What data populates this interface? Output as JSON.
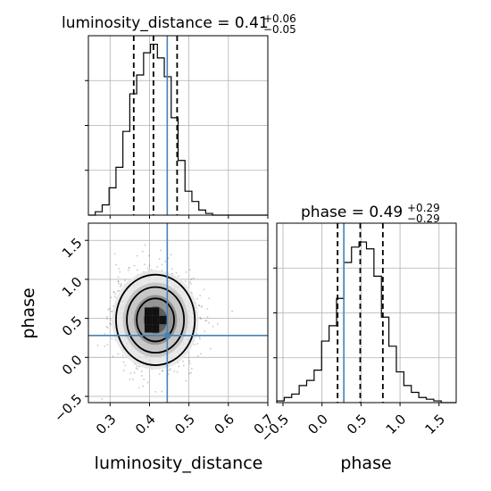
{
  "chart_data": [
    {
      "type": "histogram",
      "panel": "top-left",
      "title_prefix": "luminosity_distance = 0.41",
      "title_sup": "+0.06",
      "title_sub": "−0.05",
      "xlim": [
        0.245,
        0.7
      ],
      "ylim": [
        0,
        1.0
      ],
      "x_ticks": [
        0.3,
        0.4,
        0.5,
        0.6,
        0.7
      ],
      "bin_edges": [
        0.245,
        0.2625,
        0.28,
        0.2975,
        0.315,
        0.3325,
        0.35,
        0.3675,
        0.385,
        0.4025,
        0.42,
        0.4375,
        0.455,
        0.4725,
        0.49,
        0.5075,
        0.525,
        0.5425,
        0.56,
        0.5775,
        0.595,
        0.6125,
        0.63,
        0.6475,
        0.665,
        0.6825,
        0.7
      ],
      "values": [
        0,
        0.02,
        0.06,
        0.16,
        0.28,
        0.49,
        0.71,
        0.82,
        0.95,
        1.0,
        0.92,
        0.81,
        0.57,
        0.32,
        0.14,
        0.08,
        0.03,
        0.01,
        0,
        0,
        0,
        0,
        0,
        0,
        0,
        0
      ],
      "quantile_lines": [
        0.36,
        0.41,
        0.47
      ],
      "truth": 0.445,
      "grid": true
    },
    {
      "type": "density-contour",
      "panel": "bottom-left",
      "xlim": [
        0.245,
        0.7
      ],
      "ylim": [
        -0.58,
        1.72
      ],
      "x_ticks": [
        0.3,
        0.4,
        0.5,
        0.6,
        0.7
      ],
      "x_tick_labels": [
        "0.3",
        "0.4",
        "0.5",
        "0.6",
        "0.7"
      ],
      "y_ticks": [
        -0.5,
        0.0,
        0.5,
        1.0,
        1.5
      ],
      "y_tick_labels": [
        "−0.5",
        "0.0",
        "0.5",
        "1.0",
        "1.5"
      ],
      "xlabel": "luminosity_distance",
      "ylabel": "phase",
      "center": [
        0.415,
        0.48
      ],
      "spread": [
        0.05,
        0.29
      ],
      "truth": [
        0.445,
        0.28
      ],
      "grid": true
    },
    {
      "type": "histogram",
      "panel": "bottom-right",
      "title_prefix": "phase = 0.49",
      "title_sup": "+0.29",
      "title_sub": "−0.29",
      "xlim": [
        -0.58,
        1.72
      ],
      "ylim": [
        0,
        1.0
      ],
      "x_ticks": [
        -0.5,
        0.0,
        0.5,
        1.0,
        1.5
      ],
      "x_tick_labels": [
        "−0.5",
        "0.0",
        "0.5",
        "1.0",
        "1.5"
      ],
      "xlabel": "phase",
      "bin_edges": [
        -0.58,
        -0.4842,
        -0.3883,
        -0.2925,
        -0.1967,
        -0.1008,
        -0.005,
        0.0908,
        0.1867,
        0.2825,
        0.3783,
        0.4742,
        0.57,
        0.6658,
        0.7617,
        0.8575,
        0.9533,
        1.0492,
        1.145,
        1.2408,
        1.3367,
        1.4325,
        1.5283,
        1.6242,
        1.72
      ],
      "values": [
        0.01,
        0.03,
        0.05,
        0.1,
        0.13,
        0.19,
        0.36,
        0.45,
        0.61,
        0.82,
        0.91,
        0.94,
        0.9,
        0.74,
        0.5,
        0.33,
        0.18,
        0.1,
        0.06,
        0.03,
        0.02,
        0.01,
        0,
        0
      ],
      "quantile_lines": [
        0.2,
        0.49,
        0.78
      ],
      "truth": 0.28,
      "grid": true
    }
  ]
}
